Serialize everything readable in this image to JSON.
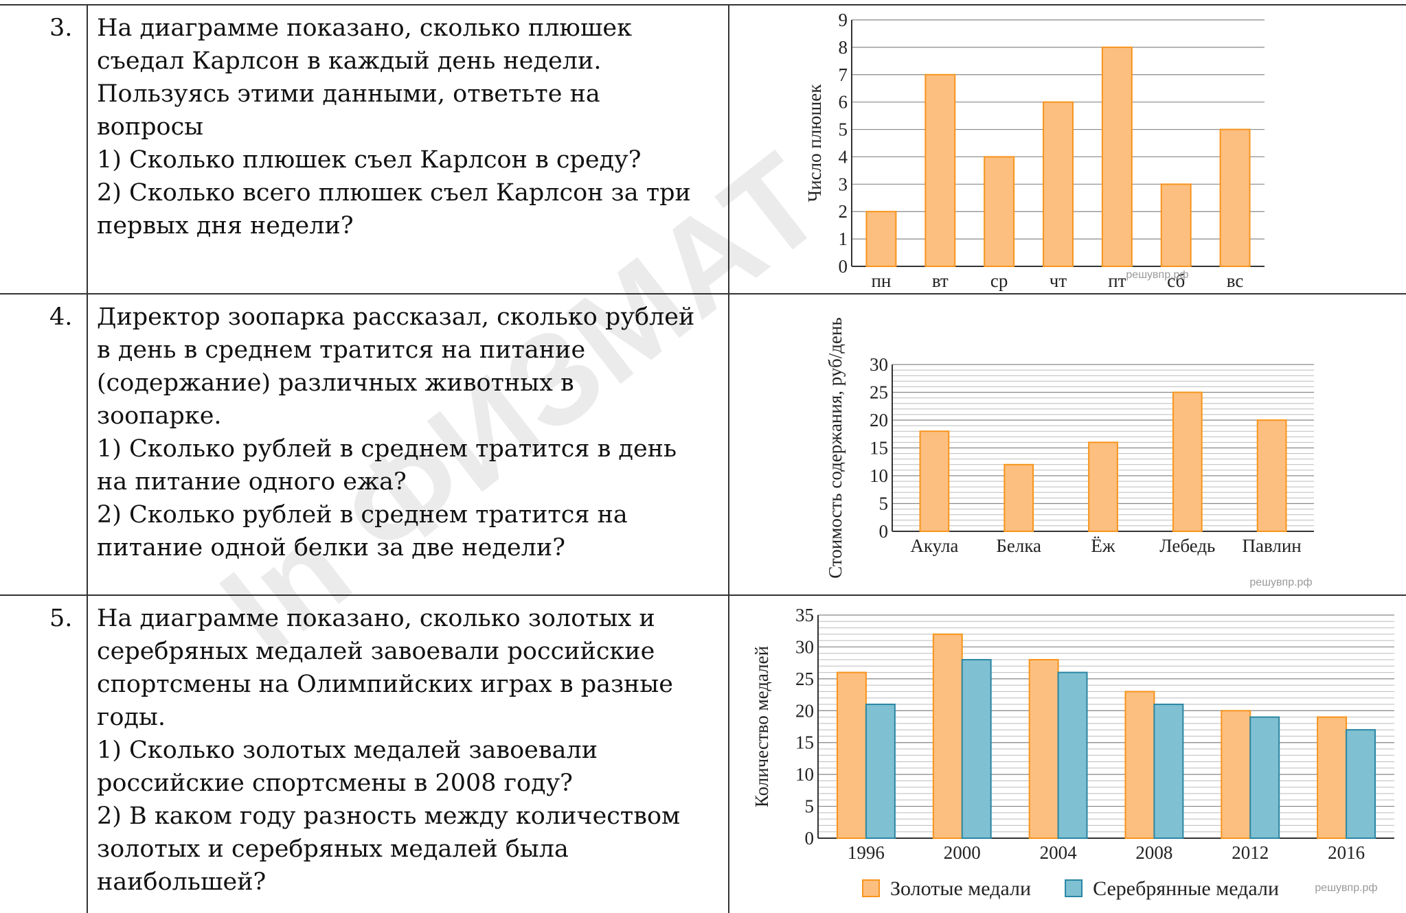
{
  "watermark": "In ФИЗМАТ",
  "rows": [
    {
      "number": "3.",
      "text": [
        "На диаграмме показано, сколько плюшек",
        "съедал Карлсон в каждый день недели.",
        "Пользуясь этими данными, ответьте на",
        "вопросы",
        "1) Сколько плюшек съел Карлсон в среду?",
        "2) Сколько всего плюшек съел Карлсон за три",
        "первых дня недели?"
      ],
      "chart": {
        "type": "bar",
        "ylabel": "Число плюшек",
        "source": "решувпр.рф",
        "categories": [
          "пн",
          "вт",
          "ср",
          "чт",
          "пт",
          "сб",
          "вс"
        ],
        "series": [
          {
            "color": "#fdbf7f",
            "values": [
              2,
              7,
              4,
              6,
              8,
              3,
              5
            ]
          }
        ],
        "ylim": [
          0,
          9
        ],
        "yticks": [
          0,
          1,
          2,
          3,
          4,
          5,
          6,
          7,
          8,
          9
        ],
        "grid": true
      }
    },
    {
      "number": "4.",
      "text": [
        "Директор зоопарка рассказал, сколько рублей",
        "в день в среднем тратится на питание",
        "(содержание) различных животных в",
        "зоопарке.",
        "1) Сколько рублей в среднем тратится в день",
        "на питание одного ежа?",
        "2) Сколько рублей в среднем тратится на",
        "питание одной белки за две недели?"
      ],
      "chart": {
        "type": "bar",
        "ylabel": "Стоимость содержания, руб/день",
        "source": "решувпр.рф",
        "categories": [
          "Акула",
          "Белка",
          "Ёж",
          "Лебедь",
          "Павлин"
        ],
        "series": [
          {
            "color": "#fdbf7f",
            "values": [
              18,
              12,
              16,
              25,
              20
            ]
          }
        ],
        "ylim": [
          0,
          30
        ],
        "yticks": [
          0,
          5,
          10,
          15,
          20,
          25,
          30
        ],
        "grid": true,
        "minor_step": 1
      }
    },
    {
      "number": "5.",
      "text": [
        "На диаграмме показано, сколько золотых и",
        "серебряных медалей завоевали российские",
        "спортсмены на Олимпийских играх в разные",
        "годы.",
        "1) Сколько золотых медалей завоевали",
        "российские спортсмены в 2008 году?",
        "2) В каком году разность между количеством",
        "золотых и серебряных медалей была",
        "наибольшей?"
      ],
      "chart": {
        "type": "bar",
        "ylabel": "Количество медалей",
        "source": "решувпр.рф",
        "categories": [
          "1996",
          "2000",
          "2004",
          "2008",
          "2012",
          "2016"
        ],
        "series": [
          {
            "name": "Золотые медали",
            "color": "#fdbf7f",
            "values": [
              26,
              32,
              28,
              23,
              20,
              19
            ]
          },
          {
            "name": "Серебрянные медали",
            "color": "#7fc0d2",
            "values": [
              21,
              28,
              26,
              21,
              19,
              17
            ]
          }
        ],
        "ylim": [
          0,
          35
        ],
        "yticks": [
          0,
          5,
          10,
          15,
          20,
          25,
          30,
          35
        ],
        "grid": true,
        "minor_step": 1,
        "legend": "bottom"
      }
    }
  ]
}
